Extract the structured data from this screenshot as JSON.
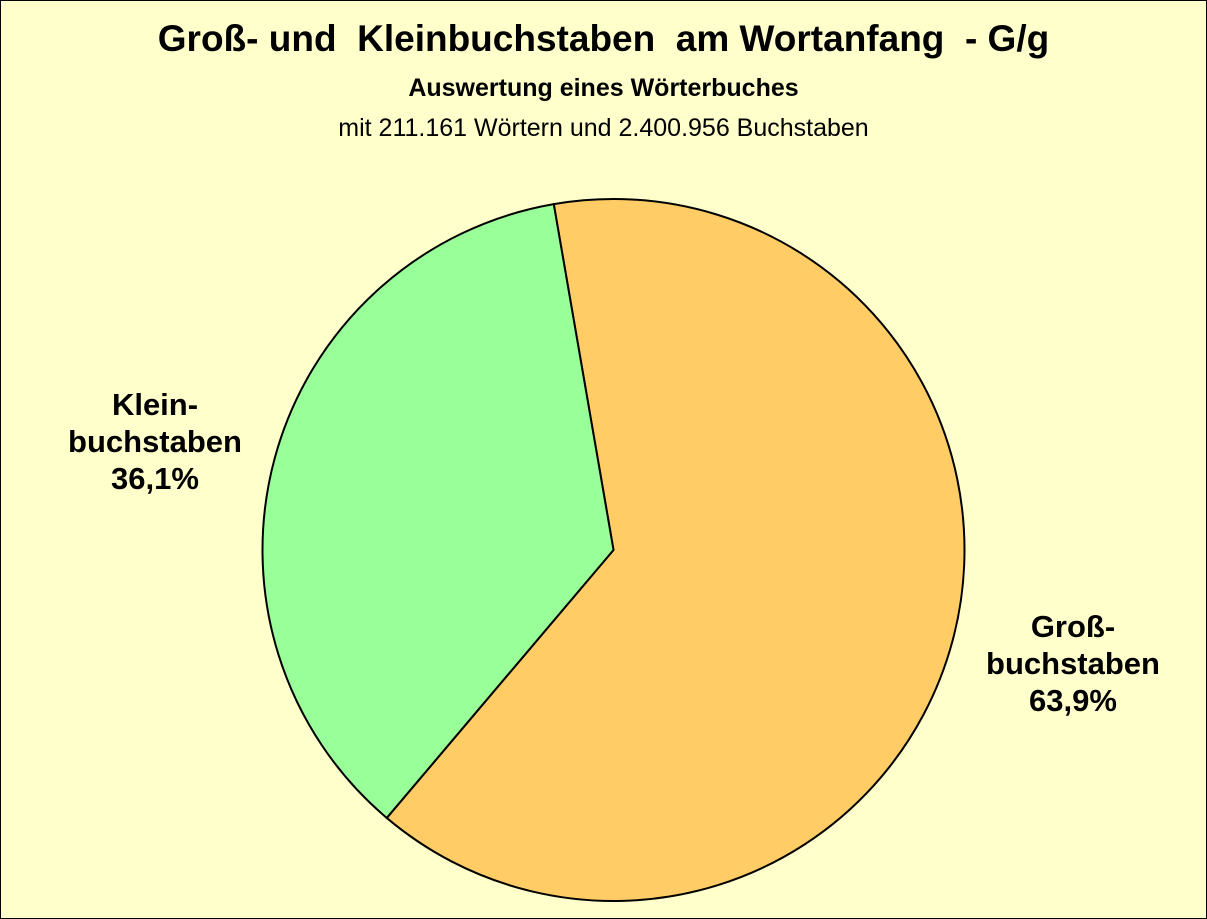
{
  "chart_data": {
    "type": "pie",
    "title": "Groß- und  Kleinbuchstaben  am Wortanfang  - G/g",
    "subtitle": "Auswertung eines Wörterbuches",
    "subtitle2": "mit 211.161 Wörtern und 2.400.956 Buchstaben",
    "slices": [
      {
        "label_line1": "Groß-",
        "label_line2": "buchstaben",
        "value": 63.9,
        "value_label": "63,9%",
        "color": "#FFCC66"
      },
      {
        "label_line1": "Klein-",
        "label_line2": "buchstaben",
        "value": 36.1,
        "value_label": "36,1%",
        "color": "#99FF99"
      }
    ],
    "background": "#FFFFCC",
    "legend": "none"
  }
}
